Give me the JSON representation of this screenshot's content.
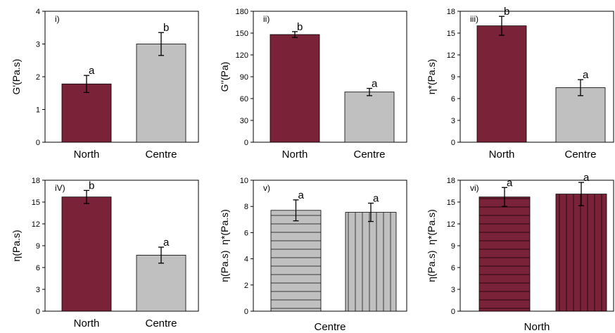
{
  "colors": {
    "north": "#7a2238",
    "centre": "#c0c0c0",
    "hatch_line": "#000000"
  },
  "chart_data": [
    {
      "type": "bar",
      "panel": "i)",
      "ylabel": "G'(Pa.s)",
      "ylim": [
        0,
        4
      ],
      "yticks": [
        0,
        1,
        2,
        3,
        4
      ],
      "categories": [
        "North",
        "Centre"
      ],
      "values": [
        1.78,
        3.0
      ],
      "errors": [
        0.26,
        0.35
      ],
      "letters": [
        "a",
        "b"
      ],
      "fills": [
        "north",
        "centre"
      ],
      "hatch": [
        "none",
        "none"
      ]
    },
    {
      "type": "bar",
      "panel": "ii)",
      "ylabel": "G''(Pa)",
      "ylim": [
        0,
        180
      ],
      "yticks": [
        0,
        30,
        60,
        90,
        120,
        150,
        180
      ],
      "categories": [
        "North",
        "Centre"
      ],
      "values": [
        148,
        69
      ],
      "errors": [
        4,
        5
      ],
      "letters": [
        "b",
        "a"
      ],
      "fills": [
        "north",
        "centre"
      ],
      "hatch": [
        "none",
        "none"
      ]
    },
    {
      "type": "bar",
      "panel": "iii)",
      "ylabel": "η*(Pa.s)",
      "ylim": [
        0,
        18
      ],
      "yticks": [
        0,
        3,
        6,
        9,
        12,
        15,
        18
      ],
      "categories": [
        "North",
        "Centre"
      ],
      "values": [
        16.0,
        7.5
      ],
      "errors": [
        1.3,
        1.1
      ],
      "letters": [
        "b",
        "a"
      ],
      "fills": [
        "north",
        "centre"
      ],
      "hatch": [
        "none",
        "none"
      ]
    },
    {
      "type": "bar",
      "panel": "iV)",
      "ylabel": "η(Pa.s)",
      "ylim": [
        0,
        18
      ],
      "yticks": [
        0,
        3,
        6,
        9,
        12,
        15,
        18
      ],
      "categories": [
        "North",
        "Centre"
      ],
      "values": [
        15.7,
        7.7
      ],
      "errors": [
        0.9,
        1.1
      ],
      "letters": [
        "b",
        "a"
      ],
      "fills": [
        "north",
        "centre"
      ],
      "hatch": [
        "none",
        "none"
      ]
    },
    {
      "type": "bar",
      "panel": "v)",
      "ylabel": "η(Pa.s)  η*(Pa.s)",
      "ylim": [
        0,
        10
      ],
      "yticks": [
        0,
        2,
        4,
        6,
        8,
        10
      ],
      "categories": [
        "",
        ""
      ],
      "group_label": "Centre",
      "values": [
        7.7,
        7.55
      ],
      "errors": [
        0.8,
        0.7
      ],
      "letters": [
        "a",
        "a"
      ],
      "fills": [
        "centre",
        "centre"
      ],
      "hatch": [
        "horizontal",
        "vertical"
      ]
    },
    {
      "type": "bar",
      "panel": "vi)",
      "ylabel": "η(Pa.s)  η*(Pa.s)",
      "ylim": [
        0,
        18
      ],
      "yticks": [
        0,
        3,
        6,
        9,
        12,
        15,
        18
      ],
      "categories": [
        "",
        ""
      ],
      "group_label": "North",
      "values": [
        15.7,
        16.1
      ],
      "errors": [
        1.3,
        1.6
      ],
      "letters": [
        "a",
        "a"
      ],
      "fills": [
        "north",
        "north"
      ],
      "hatch": [
        "horizontal",
        "vertical"
      ]
    }
  ]
}
